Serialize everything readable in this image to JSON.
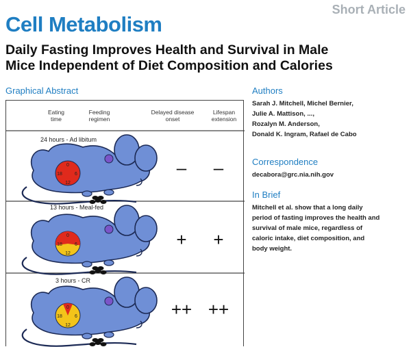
{
  "header": {
    "article_type": "Short Article",
    "journal": "Cell Metabolism",
    "title_line1": "Daily Fasting Improves Health and Survival in Male",
    "title_line2": "Mice Independent of Diet Composition and Calories"
  },
  "graphical_abstract": {
    "heading": "Graphical Abstract",
    "columns": {
      "eating_time": [
        "Eating",
        "time"
      ],
      "feeding_regimen": [
        "Feeding",
        "regimen"
      ],
      "delayed_onset": [
        "Delayed disease",
        "onset"
      ],
      "lifespan": [
        "Lifespan",
        "extension"
      ]
    },
    "clock_labels": {
      "top": "0",
      "right": "6",
      "bottom": "12",
      "left": "18"
    },
    "rows": [
      {
        "label": "24 hours - Ad libitum",
        "eating_hours": 24,
        "delayed_onset": "–",
        "lifespan": "–"
      },
      {
        "label": "13 hours - Meal-fed",
        "eating_hours": 13,
        "delayed_onset": "+",
        "lifespan": "+"
      },
      {
        "label": "3 hours - CR",
        "eating_hours": 3,
        "delayed_onset": "++",
        "lifespan": "++"
      }
    ],
    "colors": {
      "mouse_fill": "#6f8fd6",
      "mouse_stroke": "#1c2a55",
      "eating_red": "#e02a1c",
      "fasting_yellow": "#f3c41a",
      "eye_purple": "#7b55c8"
    }
  },
  "authors": {
    "heading": "Authors",
    "lines": [
      "Sarah J. Mitchell, Michel Bernier,",
      "Julie A. Mattison, ...,",
      "Rozalyn M. Anderson,",
      "Donald K. Ingram, Rafael de Cabo"
    ]
  },
  "correspondence": {
    "heading": "Correspondence",
    "email": "decabora@grc.nia.nih.gov"
  },
  "in_brief": {
    "heading": "In Brief",
    "lines": [
      "Mitchell et al. show that a long daily",
      "period of fasting improves the health and",
      "survival of male mice, regardless of",
      "caloric intake, diet composition, and",
      "body weight."
    ]
  }
}
